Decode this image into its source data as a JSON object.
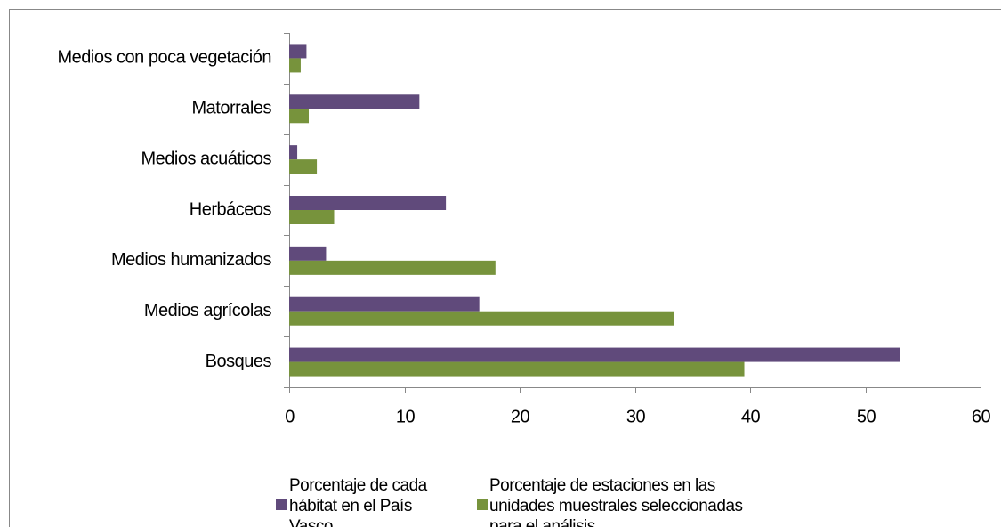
{
  "chart_data": {
    "type": "barh",
    "categories": [
      "Medios con poca vegetación",
      "Matorrales",
      "Medios acuáticos",
      "Herbáceos",
      "Medios humanizados",
      "Medios agrícolas",
      "Bosques"
    ],
    "series": [
      {
        "name": "Porcentaje de cada hábitat en el País Vasco",
        "color": "#604a7b",
        "values": [
          1.5,
          11.3,
          0.7,
          13.6,
          3.2,
          16.5,
          53.0
        ]
      },
      {
        "name": "Porcentaje de estaciones en las unidades muestrales seleccionadas para el análisis",
        "color": "#77933c",
        "values": [
          1.0,
          1.7,
          2.4,
          3.9,
          17.9,
          33.4,
          39.5
        ]
      }
    ],
    "xlim": [
      0,
      60
    ],
    "xticks": [
      0,
      10,
      20,
      30,
      40,
      50,
      60
    ],
    "grid": false,
    "legend": "bottom"
  }
}
